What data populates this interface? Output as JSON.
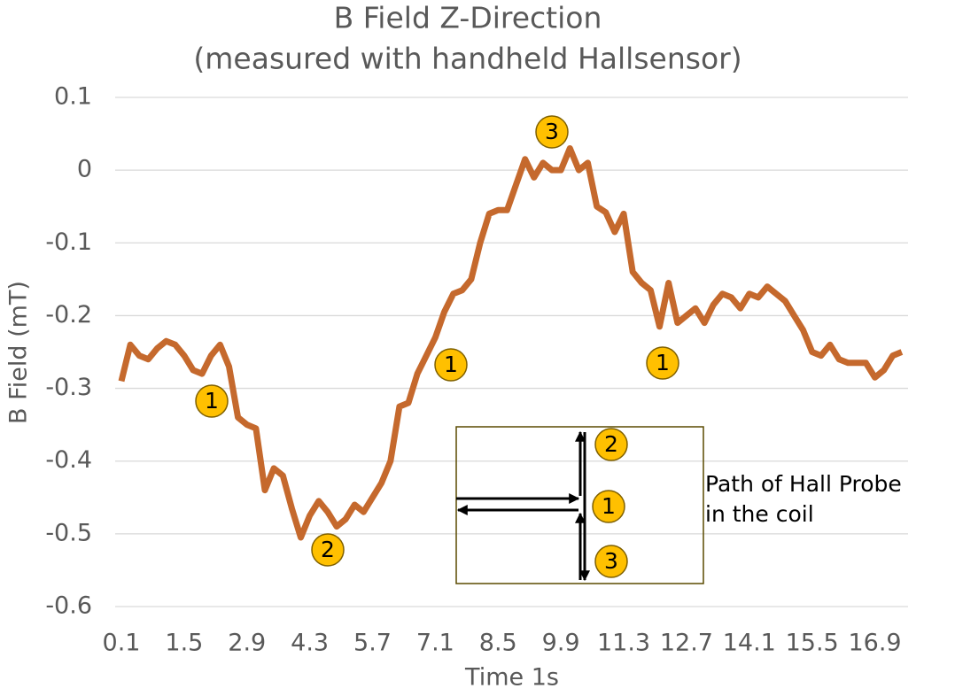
{
  "chart_data": {
    "type": "line",
    "title": [
      "B Field Z-Direction",
      "(measured with handheld Hallsensor)"
    ],
    "y_label": "B Field (mT)",
    "x_label": "Time 1s",
    "color": "#c5692d",
    "x": [
      0.1,
      0.3,
      0.5,
      0.7,
      0.9,
      1.1,
      1.3,
      1.5,
      1.7,
      1.9,
      2.1,
      2.3,
      2.5,
      2.7,
      2.9,
      3.1,
      3.3,
      3.5,
      3.7,
      3.9,
      4.1,
      4.3,
      4.5,
      4.7,
      4.9,
      5.1,
      5.3,
      5.5,
      5.7,
      5.9,
      6.1,
      6.3,
      6.5,
      6.7,
      6.9,
      7.1,
      7.3,
      7.5,
      7.7,
      7.9,
      8.1,
      8.3,
      8.5,
      8.7,
      8.9,
      9.1,
      9.3,
      9.5,
      9.7,
      9.9,
      10.1,
      10.3,
      10.5,
      10.7,
      10.9,
      11.1,
      11.3,
      11.5,
      11.7,
      11.9,
      12.1,
      12.3,
      12.5,
      12.7,
      12.9,
      13.1,
      13.3,
      13.5,
      13.7,
      13.9,
      14.1,
      14.3,
      14.5,
      14.7,
      14.9,
      15.1,
      15.3,
      15.5,
      15.7,
      15.9,
      16.1,
      16.3,
      16.5,
      16.7,
      16.9,
      17.1,
      17.3,
      17.5
    ],
    "values": [
      -0.29,
      -0.24,
      -0.255,
      -0.26,
      -0.245,
      -0.235,
      -0.24,
      -0.255,
      -0.275,
      -0.28,
      -0.255,
      -0.24,
      -0.27,
      -0.34,
      -0.35,
      -0.355,
      -0.44,
      -0.41,
      -0.42,
      -0.465,
      -0.505,
      -0.475,
      -0.455,
      -0.47,
      -0.49,
      -0.48,
      -0.46,
      -0.47,
      -0.45,
      -0.43,
      -0.4,
      -0.325,
      -0.32,
      -0.28,
      -0.255,
      -0.23,
      -0.195,
      -0.17,
      -0.165,
      -0.15,
      -0.1,
      -0.06,
      -0.055,
      -0.055,
      -0.02,
      0.015,
      -0.01,
      0.01,
      0,
      0,
      0.03,
      0,
      0.01,
      -0.05,
      -0.058,
      -0.085,
      -0.06,
      -0.14,
      -0.155,
      -0.165,
      -0.215,
      -0.155,
      -0.21,
      -0.2,
      -0.19,
      -0.21,
      -0.185,
      -0.17,
      -0.175,
      -0.19,
      -0.17,
      -0.175,
      -0.16,
      -0.17,
      -0.18,
      -0.2,
      -0.22,
      -0.25,
      -0.255,
      -0.24,
      -0.26,
      -0.265,
      -0.265,
      -0.265,
      -0.285,
      -0.275,
      -0.255,
      -0.25
    ],
    "xlim": [
      0.1,
      17.6
    ],
    "xticks": [
      0.1,
      1.5,
      2.9,
      4.3,
      5.7,
      7.1,
      8.5,
      9.9,
      11.3,
      12.7,
      14.1,
      15.5,
      16.9
    ],
    "ylim": [
      -0.6,
      0.1
    ],
    "yticks": [
      0.1,
      0,
      -0.1,
      -0.2,
      -0.3,
      -0.4,
      -0.5,
      -0.6
    ],
    "grid": true,
    "annotations": [
      "1",
      "2",
      "1",
      "3",
      "1"
    ],
    "inset": {
      "labels": [
        "2",
        "1",
        "3"
      ],
      "caption": [
        "Path of Hall Probe",
        "in the coil"
      ]
    }
  }
}
